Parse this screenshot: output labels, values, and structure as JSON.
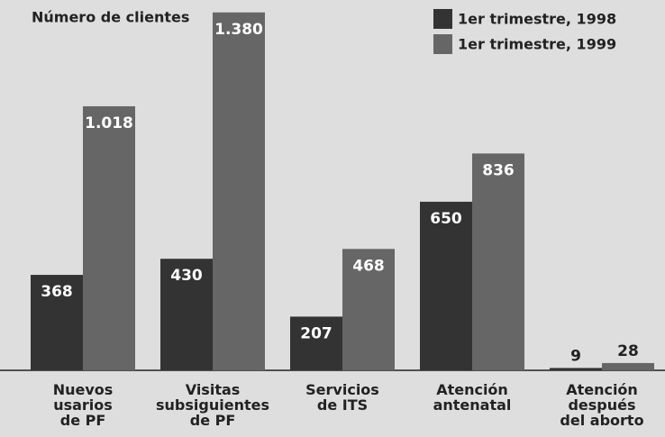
{
  "chart_data": {
    "type": "bar",
    "title": "Número de clientes",
    "categories": [
      "Nuevos\nusarios\nde PF",
      "Visitas\nsubsiguientes\nde PF",
      "Servicios\nde ITS",
      "Atención\nantenatal",
      "Atención\ndespués\ndel aborto"
    ],
    "series": [
      {
        "name": "1er trimestre, 1998",
        "color": "#333333",
        "values": [
          368,
          430,
          207,
          650,
          9
        ],
        "value_labels": [
          "368",
          "430",
          "207",
          "650",
          "9"
        ]
      },
      {
        "name": "1er trimestre, 1999",
        "color": "#666666",
        "values": [
          1018,
          1380,
          468,
          836,
          28
        ],
        "value_labels": [
          "1.018",
          "1.380",
          "468",
          "836",
          "28"
        ]
      }
    ],
    "ylim": [
      0,
      1400
    ],
    "grid": false,
    "legend": "top-right"
  }
}
